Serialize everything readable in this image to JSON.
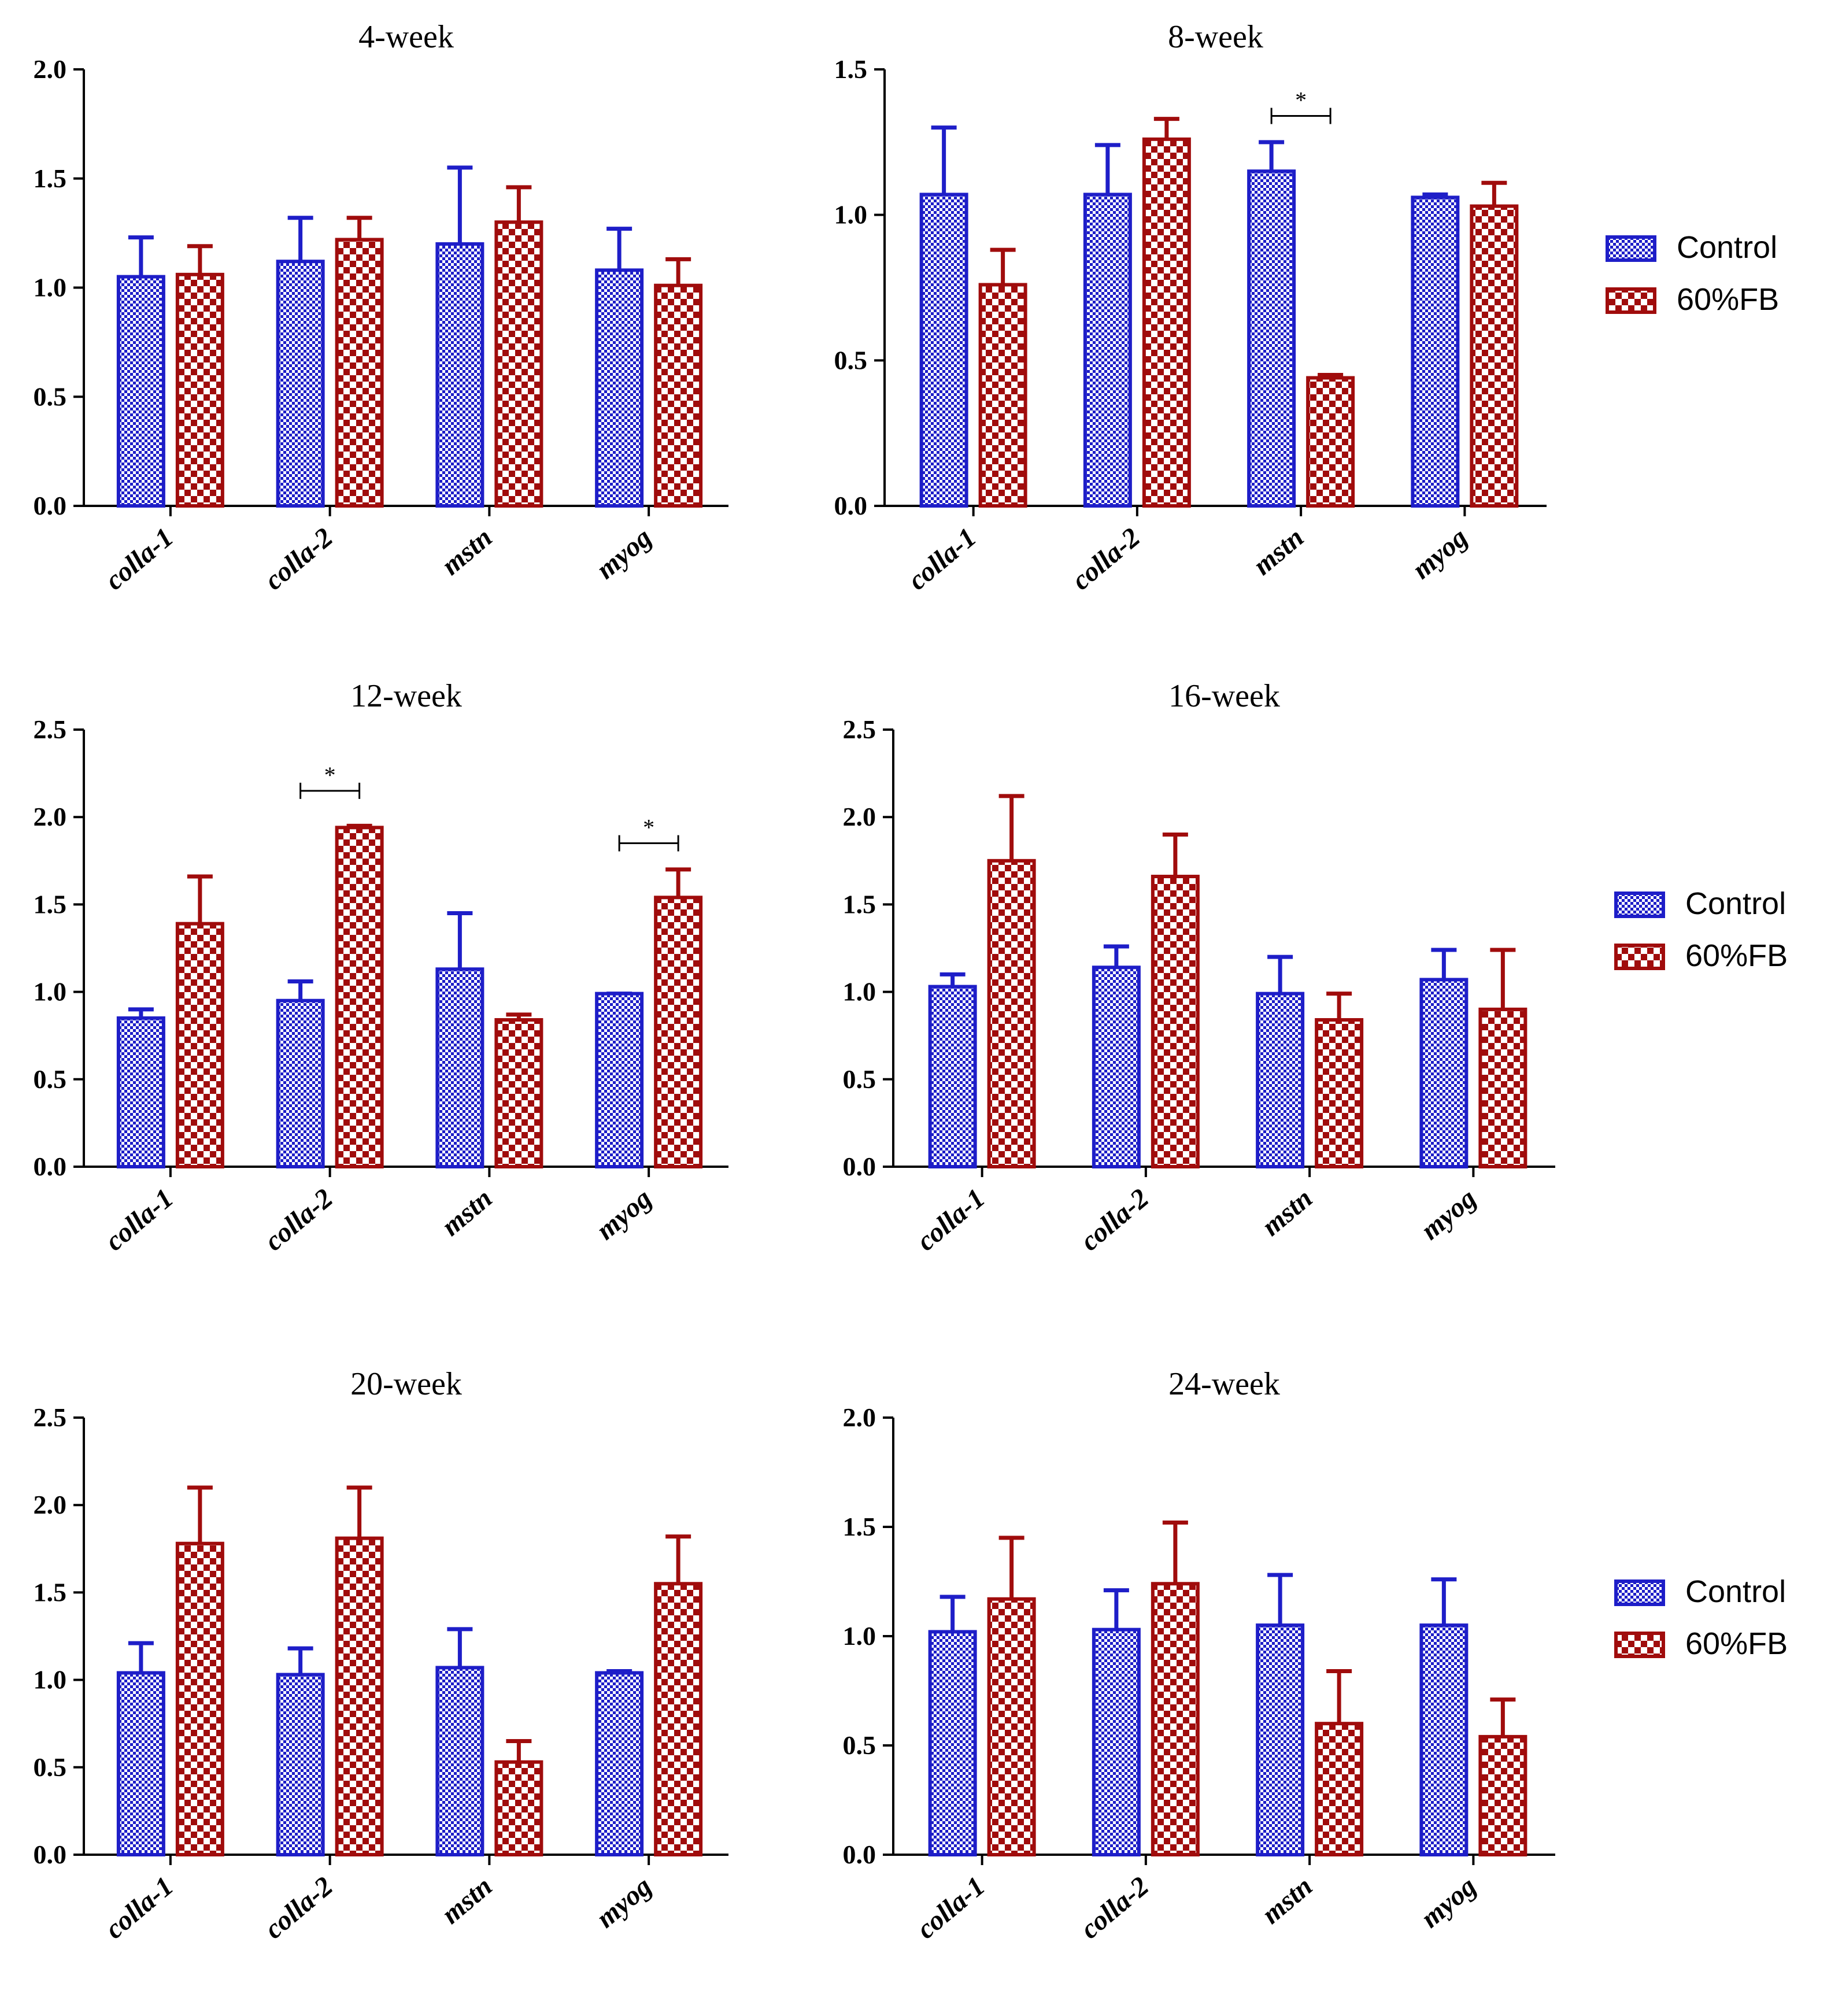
{
  "colors": {
    "control": "#1e1ec8",
    "fb": "#a00c0c",
    "axis": "#000000",
    "sig": "#000000"
  },
  "chart_data": [
    {
      "type": "bar",
      "title": "4-week",
      "categories": [
        "colla-1",
        "colla-2",
        "mstn",
        "myog"
      ],
      "ylim": [
        0,
        2.0
      ],
      "yticks": [
        "0.0",
        "0.5",
        "1.0",
        "1.5",
        "2.0"
      ],
      "series": [
        {
          "name": "Control",
          "values": [
            1.05,
            1.12,
            1.2,
            1.08
          ],
          "errors": [
            0.18,
            0.2,
            0.35,
            0.19
          ]
        },
        {
          "name": "60%FB",
          "values": [
            1.06,
            1.22,
            1.3,
            1.01
          ],
          "errors": [
            0.13,
            0.1,
            0.16,
            0.12
          ]
        }
      ],
      "significance": []
    },
    {
      "type": "bar",
      "title": "8-week",
      "categories": [
        "colla-1",
        "colla-2",
        "mstn",
        "myog"
      ],
      "ylim": [
        0,
        1.5
      ],
      "yticks": [
        "0.0",
        "0.5",
        "1.0",
        "1.5"
      ],
      "series": [
        {
          "name": "Control",
          "values": [
            1.07,
            1.07,
            1.15,
            1.06
          ],
          "errors": [
            0.23,
            0.17,
            0.1,
            0.01
          ]
        },
        {
          "name": "60%FB",
          "values": [
            0.76,
            1.26,
            0.44,
            1.03
          ],
          "errors": [
            0.12,
            0.07,
            0.01,
            0.08
          ]
        }
      ],
      "significance": [
        {
          "category_index": 2,
          "label": "*",
          "y": 1.34
        }
      ],
      "legend": {
        "items": [
          "Control",
          "60%FB"
        ],
        "position": "right"
      }
    },
    {
      "type": "bar",
      "title": "12-week",
      "categories": [
        "colla-1",
        "colla-2",
        "mstn",
        "myog"
      ],
      "ylim": [
        0,
        2.5
      ],
      "yticks": [
        "0.0",
        "0.5",
        "1.0",
        "1.5",
        "2.0",
        "2.5"
      ],
      "series": [
        {
          "name": "Control",
          "values": [
            0.85,
            0.95,
            1.13,
            0.99
          ],
          "errors": [
            0.05,
            0.11,
            0.32,
            0.0
          ]
        },
        {
          "name": "60%FB",
          "values": [
            1.39,
            1.94,
            0.84,
            1.54
          ],
          "errors": [
            0.27,
            0.01,
            0.03,
            0.16
          ]
        }
      ],
      "significance": [
        {
          "category_index": 1,
          "label": "*",
          "y": 2.15
        },
        {
          "category_index": 3,
          "label": "*",
          "y": 1.85
        }
      ]
    },
    {
      "type": "bar",
      "title": "16-week",
      "categories": [
        "colla-1",
        "colla-2",
        "mstn",
        "myog"
      ],
      "ylim": [
        0,
        2.5
      ],
      "yticks": [
        "0.0",
        "0.5",
        "1.0",
        "1.5",
        "2.0",
        "2.5"
      ],
      "series": [
        {
          "name": "Control",
          "values": [
            1.03,
            1.14,
            0.99,
            1.07
          ],
          "errors": [
            0.07,
            0.12,
            0.21,
            0.17
          ]
        },
        {
          "name": "60%FB",
          "values": [
            1.75,
            1.66,
            0.84,
            0.9
          ],
          "errors": [
            0.37,
            0.24,
            0.15,
            0.34
          ]
        }
      ],
      "significance": [],
      "legend": {
        "items": [
          "Control",
          "60%FB"
        ],
        "position": "right"
      }
    },
    {
      "type": "bar",
      "title": "20-week",
      "categories": [
        "colla-1",
        "colla-2",
        "mstn",
        "myog"
      ],
      "ylim": [
        0,
        2.5
      ],
      "yticks": [
        "0.0",
        "0.5",
        "1.0",
        "1.5",
        "2.0",
        "2.5"
      ],
      "series": [
        {
          "name": "Control",
          "values": [
            1.04,
            1.03,
            1.07,
            1.04
          ],
          "errors": [
            0.17,
            0.15,
            0.22,
            0.01
          ]
        },
        {
          "name": "60%FB",
          "values": [
            1.78,
            1.81,
            0.53,
            1.55
          ],
          "errors": [
            0.32,
            0.29,
            0.12,
            0.27
          ]
        }
      ],
      "significance": []
    },
    {
      "type": "bar",
      "title": "24-week",
      "categories": [
        "colla-1",
        "colla-2",
        "mstn",
        "myog"
      ],
      "ylim": [
        0,
        2.0
      ],
      "yticks": [
        "0.0",
        "0.5",
        "1.0",
        "1.5",
        "2.0"
      ],
      "series": [
        {
          "name": "Control",
          "values": [
            1.02,
            1.03,
            1.05,
            1.05
          ],
          "errors": [
            0.16,
            0.18,
            0.23,
            0.21
          ]
        },
        {
          "name": "60%FB",
          "values": [
            1.17,
            1.24,
            0.6,
            0.54
          ],
          "errors": [
            0.28,
            0.28,
            0.24,
            0.17
          ]
        }
      ],
      "significance": [],
      "legend": {
        "items": [
          "Control",
          "60%FB"
        ],
        "position": "right"
      }
    }
  ]
}
